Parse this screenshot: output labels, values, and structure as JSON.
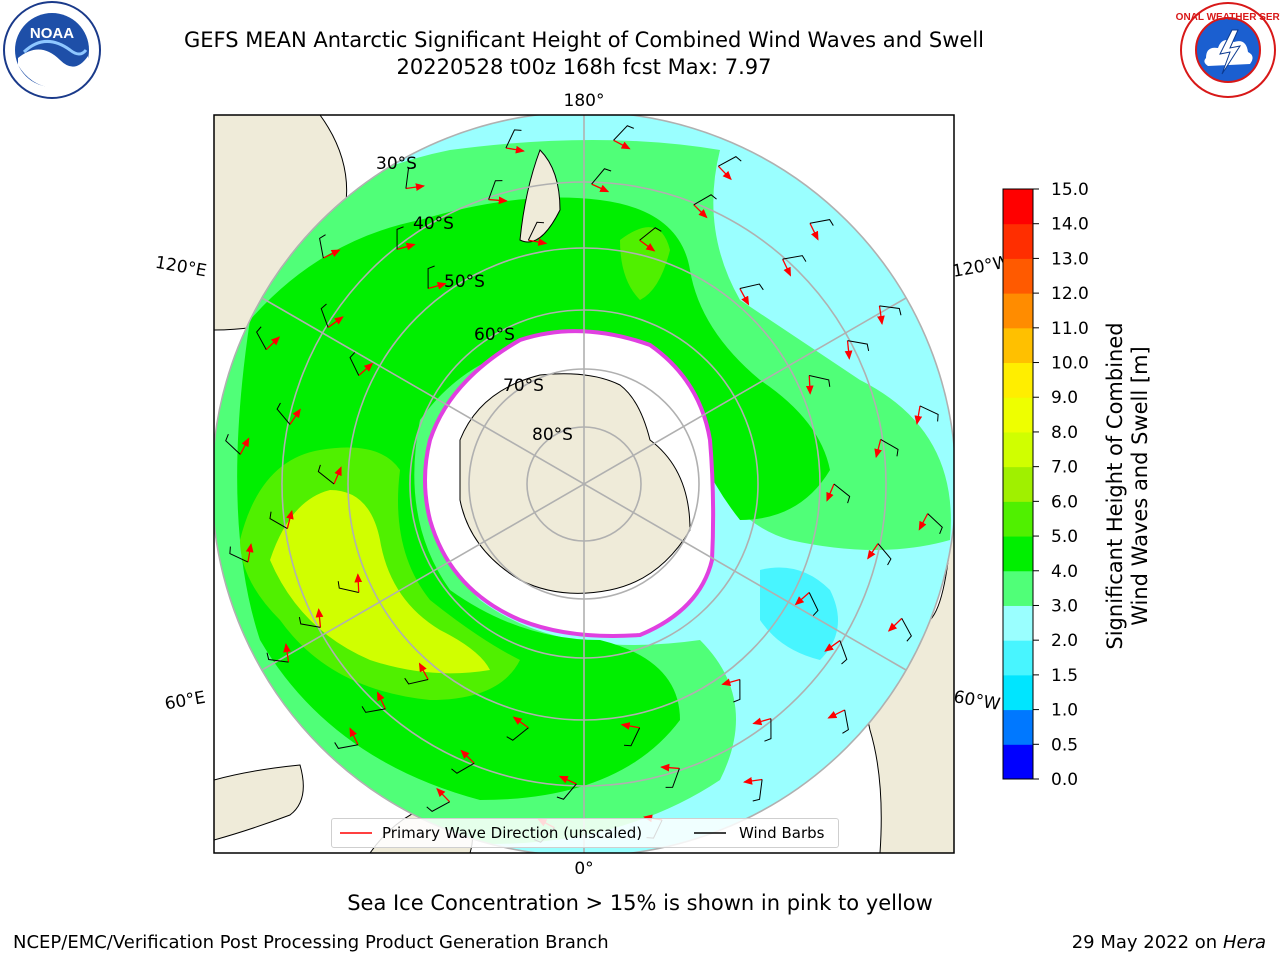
{
  "title_line1": "GEFS MEAN Antarctic Significant Height of Combined Wind Waves and Swell",
  "title_line2": "20220528 t00z 168h fcst   Max: 7.97",
  "map": {
    "lon_labels": {
      "top": "180°",
      "bottom": "0°",
      "upper_left": "120°E",
      "upper_right": "120°W",
      "lower_left": "60°E",
      "lower_right": "60°W"
    },
    "lat_labels": [
      "30°S",
      "40°S",
      "50°S",
      "60°S",
      "70°S",
      "80°S"
    ],
    "land_color": "#efebd9",
    "ice_color": "#ffffff",
    "ice_edge_color": "#e040e0"
  },
  "legend": {
    "wave_label": "Primary Wave Direction (unscaled)",
    "barb_label": "Wind Barbs",
    "wave_color": "#ff0000",
    "barb_color": "#000000"
  },
  "colorbar": {
    "label_line1": "Significant Height of Combined",
    "label_line2": "Wind Waves and Swell [m]",
    "ticks": [
      "0.0",
      "0.5",
      "1.0",
      "1.5",
      "2.0",
      "3.0",
      "4.0",
      "5.0",
      "6.0",
      "7.0",
      "8.0",
      "9.0",
      "10.0",
      "11.0",
      "12.0",
      "13.0",
      "14.0",
      "15.0"
    ],
    "colors": [
      "#0000ff",
      "#0078ff",
      "#00e5ff",
      "#48f5ff",
      "#9affff",
      "#50ff78",
      "#00ef00",
      "#50f000",
      "#a0f000",
      "#d0ff00",
      "#eeff00",
      "#ffee00",
      "#ffc000",
      "#ff8c00",
      "#ff5a00",
      "#ff2e00",
      "#ff0000"
    ]
  },
  "note": "Sea Ice Concentration > 15% is shown in pink to yellow",
  "footer_left": "NCEP/EMC/Verification Post Processing Product Generation Branch",
  "footer_date": "29 May 2022 on",
  "footer_machine": "Hera",
  "logos": {
    "noaa_text": "NOAA",
    "nws_text": "NATIONAL WEATHER SERVICE"
  }
}
